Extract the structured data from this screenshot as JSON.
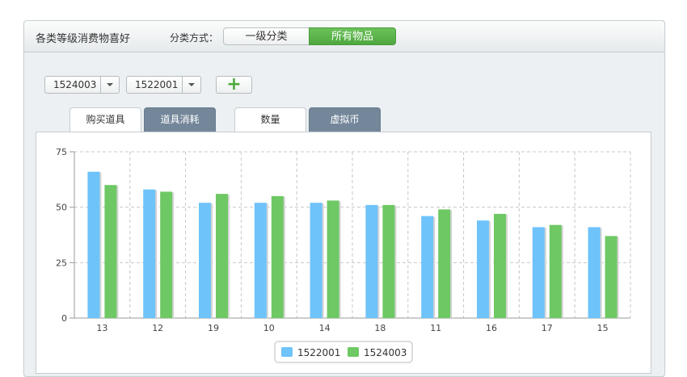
{
  "header": {
    "title": "各类等级消费物喜好",
    "sort_label": "分类方式：",
    "segments": [
      "一级分类",
      "所有物品"
    ],
    "active_segment": 1
  },
  "filters": {
    "select_a": "1524003",
    "select_b": "1522001",
    "add_label": "+"
  },
  "tabs": {
    "group_a": [
      "购买道具",
      "道具消耗"
    ],
    "group_b": [
      "数量",
      "虚拟币"
    ]
  },
  "colors": {
    "blue": "#6ec3fa",
    "green": "#6ec864",
    "grid": "#c8c8c8",
    "accent": "#5ab44b"
  },
  "chart_data": {
    "type": "bar",
    "categories": [
      "13",
      "12",
      "19",
      "10",
      "14",
      "18",
      "11",
      "16",
      "17",
      "15"
    ],
    "series": [
      {
        "name": "1522001",
        "values": [
          66,
          58,
          52,
          52,
          52,
          51,
          46,
          44,
          41,
          41
        ]
      },
      {
        "name": "1524003",
        "values": [
          60,
          57,
          56,
          55,
          53,
          51,
          49,
          47,
          42,
          37
        ]
      }
    ],
    "yticks": [
      "0",
      "25",
      "50",
      "75"
    ],
    "ylim": [
      0,
      75
    ],
    "grid": true,
    "legend_position": "bottom-center"
  }
}
